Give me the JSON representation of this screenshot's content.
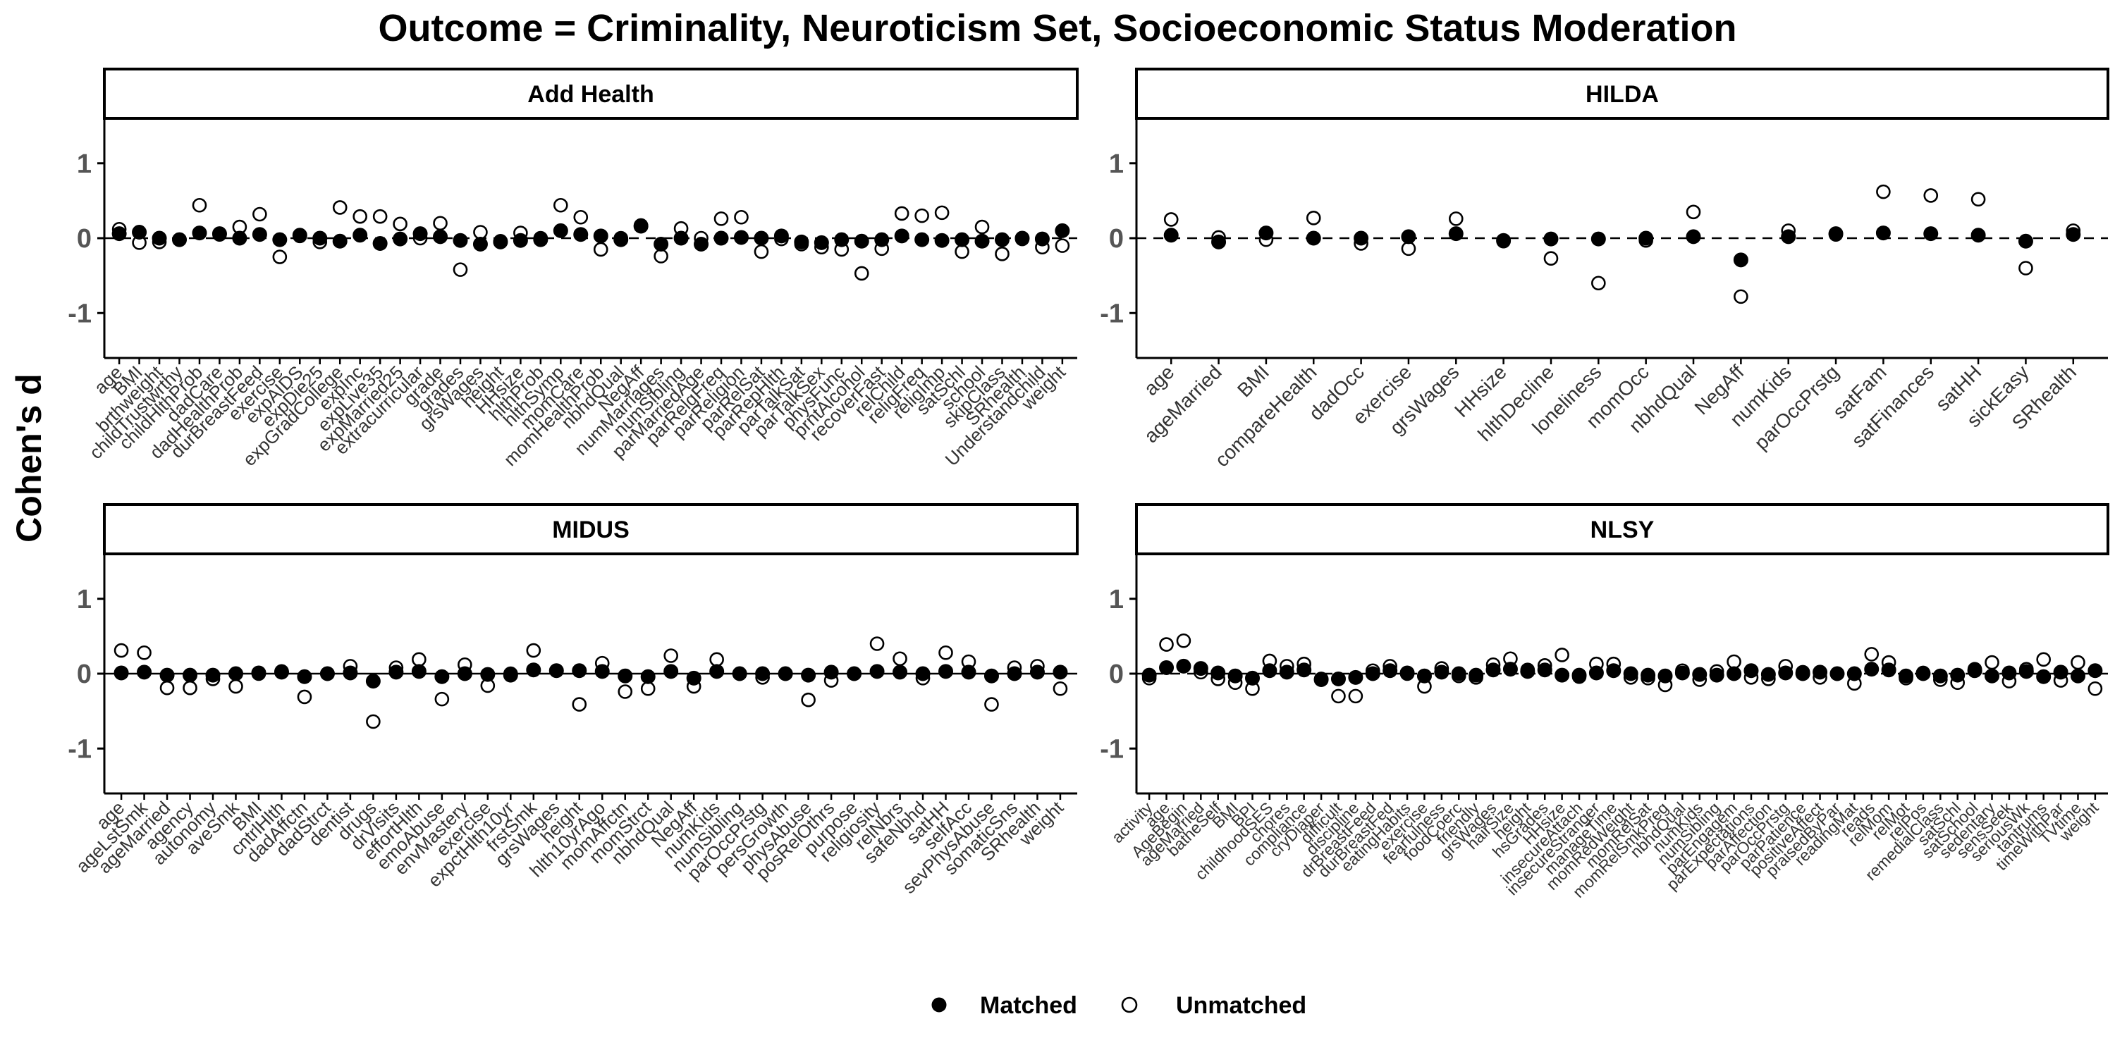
{
  "figure": {
    "title": "Outcome = Criminality, Neuroticism Set, Socioeconomic Status Moderation",
    "ylabel": "Cohen's d",
    "legend": {
      "placement": "bottom-center",
      "items": [
        {
          "label": "Matched",
          "style": "filled"
        },
        {
          "label": "Unmatched",
          "style": "open"
        }
      ]
    },
    "yticks": [
      "1",
      "0",
      "-1"
    ]
  },
  "chart_data": [
    {
      "type": "scatter",
      "panel": "Add Health",
      "ylim": [
        -1.6,
        1.6
      ],
      "yticks": [
        -1,
        0,
        1
      ],
      "zero_line": "dashed",
      "categories": [
        "age",
        "BMI",
        "brthweight",
        "childTrustwrthy",
        "childHlthProb",
        "dadCare",
        "dadHealthProb",
        "durBreastFeed",
        "exercise",
        "expAIDS",
        "expDie25",
        "expGradCollege",
        "expInc",
        "expLive35",
        "expMarried25",
        "extracurricular",
        "grade",
        "grades",
        "grsWages",
        "height",
        "HHsize",
        "hlthProb",
        "hlthSymp",
        "momCare",
        "momHealthProb",
        "nbhdQual",
        "NegAff",
        "numMarriages",
        "numSibling",
        "parMarriedAge",
        "parRelgFreq",
        "parReligion",
        "parRelSat",
        "parRepHlth",
        "parTalkSat",
        "parTalkSex",
        "physFunc",
        "prntAlcohol",
        "recoverFast",
        "relChild",
        "religFreq",
        "religImp",
        "satSchl",
        "school",
        "skipClass",
        "SRhealth",
        "Understandchild",
        "weight"
      ],
      "series": [
        {
          "name": "Matched",
          "values": [
            0.06,
            0.08,
            0.0,
            -0.02,
            0.07,
            0.06,
            0.0,
            0.05,
            -0.02,
            0.04,
            0.0,
            -0.04,
            0.04,
            -0.07,
            -0.01,
            0.06,
            0.02,
            -0.03,
            -0.08,
            -0.05,
            -0.03,
            -0.02,
            0.1,
            0.05,
            0.03,
            -0.02,
            0.16,
            -0.08,
            0.0,
            -0.08,
            0.0,
            0.01,
            0.0,
            0.03,
            -0.05,
            -0.06,
            -0.02,
            -0.04,
            -0.02,
            0.03,
            -0.02,
            -0.03,
            -0.02,
            -0.04,
            -0.02,
            0.0,
            -0.01,
            0.1
          ]
        },
        {
          "name": "Unmatched",
          "values": [
            0.12,
            -0.06,
            -0.05,
            -0.02,
            0.44,
            0.05,
            0.15,
            0.32,
            -0.25,
            0.03,
            -0.05,
            0.41,
            0.29,
            0.29,
            0.19,
            0.0,
            0.2,
            -0.42,
            0.08,
            -0.04,
            0.07,
            0.0,
            0.44,
            0.28,
            -0.15,
            0.0,
            0.17,
            -0.24,
            0.13,
            0.0,
            0.26,
            0.28,
            -0.18,
            -0.01,
            -0.08,
            -0.12,
            -0.15,
            -0.47,
            -0.14,
            0.33,
            0.3,
            0.34,
            -0.18,
            0.15,
            -0.21,
            -0.01,
            -0.12,
            -0.1
          ]
        }
      ]
    },
    {
      "type": "scatter",
      "panel": "HILDA",
      "ylim": [
        -1.6,
        1.6
      ],
      "yticks": [
        -1,
        0,
        1
      ],
      "zero_line": "dashed",
      "categories": [
        "age",
        "ageMarried",
        "BMI",
        "compareHealth",
        "dadOcc",
        "exercise",
        "grsWages",
        "HHsize",
        "hlthDecline",
        "loneliness",
        "momOcc",
        "nbhdQual",
        "NegAff",
        "numKids",
        "parOccPrstg",
        "satFam",
        "satFinances",
        "satHH",
        "sickEasy",
        "SRhealth"
      ],
      "series": [
        {
          "name": "Matched",
          "values": [
            0.04,
            -0.05,
            0.07,
            0.0,
            0.0,
            0.02,
            0.06,
            -0.03,
            -0.01,
            -0.01,
            0.0,
            0.02,
            -0.29,
            0.02,
            0.06,
            0.07,
            0.06,
            0.04,
            -0.04,
            0.05
          ]
        },
        {
          "name": "Unmatched",
          "values": [
            0.25,
            0.01,
            -0.02,
            0.27,
            -0.07,
            -0.14,
            0.26,
            -0.04,
            -0.27,
            -0.6,
            -0.03,
            0.35,
            -0.78,
            0.1,
            0.05,
            0.62,
            0.57,
            0.52,
            -0.4,
            0.1
          ]
        }
      ]
    },
    {
      "type": "scatter",
      "panel": "MIDUS",
      "ylim": [
        -1.6,
        1.6
      ],
      "yticks": [
        -1,
        0,
        1
      ],
      "zero_line": "solid",
      "categories": [
        "age",
        "ageLstSmk",
        "ageMarried",
        "agency",
        "autonomy",
        "aveSmk",
        "BMI",
        "cntrlHlth",
        "dadAffctn",
        "dadStrct",
        "dentist",
        "drugs",
        "drVisits",
        "effortHlth",
        "emoAbuse",
        "envMastery",
        "exercise",
        "expctHlth10yr",
        "frstSmk",
        "grsWages",
        "height",
        "hlth10yrAgo",
        "momAffctn",
        "momStrct",
        "nbhdQual",
        "NegAff",
        "numKids",
        "numSibling",
        "parOccPrstg",
        "persGrowth",
        "physAbuse",
        "posRelOthrs",
        "purpose",
        "religiosity",
        "relNbrs",
        "safeNbhd",
        "satHH",
        "selfAcc",
        "sevPhysAbuse",
        "somaticSns",
        "SRhealth",
        "weight"
      ],
      "series": [
        {
          "name": "Matched",
          "values": [
            0.01,
            0.02,
            -0.02,
            -0.02,
            -0.02,
            0.0,
            0.01,
            0.02,
            -0.04,
            0.0,
            0.01,
            -0.1,
            0.02,
            0.03,
            -0.04,
            0.0,
            -0.01,
            -0.02,
            0.05,
            0.04,
            0.04,
            0.03,
            -0.03,
            -0.04,
            0.03,
            -0.06,
            0.03,
            0.0,
            0.0,
            0.0,
            -0.02,
            0.02,
            0.0,
            0.03,
            0.02,
            0.0,
            0.03,
            0.02,
            -0.03,
            0.0,
            0.02,
            0.02
          ]
        },
        {
          "name": "Unmatched",
          "values": [
            0.31,
            0.28,
            -0.19,
            -0.19,
            -0.07,
            -0.17,
            0.0,
            0.03,
            -0.31,
            0.0,
            0.1,
            -0.64,
            0.08,
            0.19,
            -0.34,
            0.12,
            -0.16,
            0.0,
            0.31,
            0.04,
            -0.41,
            0.14,
            -0.24,
            -0.2,
            0.24,
            -0.17,
            0.19,
            0.0,
            -0.05,
            0.0,
            -0.35,
            -0.09,
            0.0,
            0.4,
            0.2,
            -0.06,
            0.28,
            0.16,
            -0.41,
            0.08,
            0.1,
            -0.2
          ]
        }
      ]
    },
    {
      "type": "scatter",
      "panel": "NLSY",
      "ylim": [
        -1.6,
        1.6
      ],
      "yticks": [
        -1,
        0,
        1
      ],
      "zero_line": "dashed",
      "categories": [
        "activity",
        "age",
        "AgeBegin",
        "ageMarried",
        "batheSelf",
        "BMI",
        "BPI",
        "childhoodSES",
        "chores",
        "compliance",
        "cryDiaper",
        "difficult",
        "discipline",
        "drBreastFeed",
        "durBreastFed",
        "eatingHabits",
        "exercise",
        "fearfulness",
        "foodCoerc",
        "friendly",
        "grsWages",
        "hairSize",
        "height",
        "hsGrades",
        "HHsize",
        "insecureAttach",
        "insecureStranger",
        "manageTime",
        "momRedWeight",
        "momRelSat",
        "momRelSmkPreg",
        "nbhdQual",
        "numKids",
        "numSibling",
        "parEngagem",
        "parExpectations",
        "parAffection",
        "parOccPrstg",
        "parPatience",
        "positiveAffect",
        "praisedByPar",
        "readingMat",
        "reads",
        "relMom",
        "relMot",
        "relPos",
        "remedialClass",
        "satSchl",
        "satSchool",
        "sedentary",
        "sensSeek",
        "seriousWk",
        "tantrums",
        "timeWithPar",
        "TVtime",
        "weight"
      ],
      "series": [
        {
          "name": "Matched",
          "values": [
            -0.02,
            0.08,
            0.1,
            0.07,
            0.01,
            -0.03,
            -0.06,
            0.04,
            0.02,
            0.05,
            -0.08,
            -0.07,
            -0.05,
            0.0,
            0.04,
            0.01,
            -0.03,
            0.02,
            0.0,
            -0.02,
            0.05,
            0.06,
            0.03,
            0.05,
            -0.02,
            -0.02,
            0.01,
            0.04,
            0.0,
            -0.02,
            -0.03,
            0.01,
            -0.01,
            -0.02,
            0.0,
            0.04,
            -0.01,
            0.01,
            0.0,
            0.02,
            0.0,
            0.0,
            0.06,
            0.05,
            -0.03,
            0.0,
            -0.03,
            -0.02,
            0.04,
            -0.03,
            0.01,
            0.03,
            -0.04,
            0.02,
            -0.03,
            0.04
          ]
        },
        {
          "name": "Unmatched",
          "values": [
            -0.06,
            0.39,
            0.44,
            0.02,
            -0.07,
            -0.12,
            -0.2,
            0.17,
            0.1,
            0.13,
            -0.07,
            -0.3,
            -0.3,
            0.04,
            0.1,
            0.0,
            -0.17,
            0.07,
            -0.03,
            -0.05,
            0.12,
            0.2,
            0.05,
            0.11,
            0.25,
            -0.04,
            0.13,
            0.13,
            -0.05,
            -0.06,
            -0.15,
            0.04,
            -0.08,
            0.03,
            0.16,
            -0.05,
            -0.07,
            0.1,
            0.02,
            -0.05,
            0.0,
            -0.13,
            0.26,
            0.15,
            -0.06,
            0.01,
            -0.08,
            -0.12,
            0.06,
            0.15,
            -0.1,
            0.06,
            0.19,
            -0.09,
            0.15,
            -0.2
          ]
        }
      ]
    }
  ]
}
